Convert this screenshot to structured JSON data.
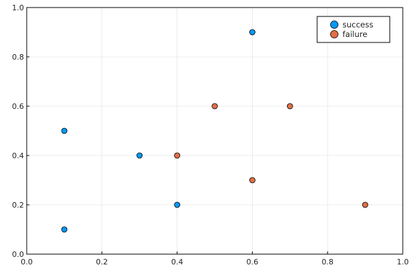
{
  "chart_data": {
    "type": "scatter",
    "title": "",
    "xlabel": "",
    "ylabel": "",
    "xlim": [
      0,
      1
    ],
    "ylim": [
      0,
      1
    ],
    "xticks": [
      0.0,
      0.2,
      0.4,
      0.6,
      0.8,
      1.0
    ],
    "yticks": [
      0.0,
      0.2,
      0.4,
      0.6,
      0.8,
      1.0
    ],
    "xtick_labels": [
      "0.0",
      "0.2",
      "0.4",
      "0.6",
      "0.8",
      "1.0"
    ],
    "ytick_labels": [
      "0.0",
      "0.2",
      "0.4",
      "0.6",
      "0.8",
      "1.0"
    ],
    "grid": true,
    "legend_position": "top-right",
    "series": [
      {
        "name": "success",
        "color": "#009AF9",
        "points": [
          [
            0.1,
            0.5
          ],
          [
            0.1,
            0.1
          ],
          [
            0.3,
            0.4
          ],
          [
            0.4,
            0.2
          ],
          [
            0.6,
            0.9
          ]
        ]
      },
      {
        "name": "failure",
        "color": "#E26F46",
        "points": [
          [
            0.4,
            0.4
          ],
          [
            0.5,
            0.6
          ],
          [
            0.6,
            0.3
          ],
          [
            0.7,
            0.6
          ],
          [
            0.9,
            0.2
          ]
        ]
      }
    ]
  }
}
